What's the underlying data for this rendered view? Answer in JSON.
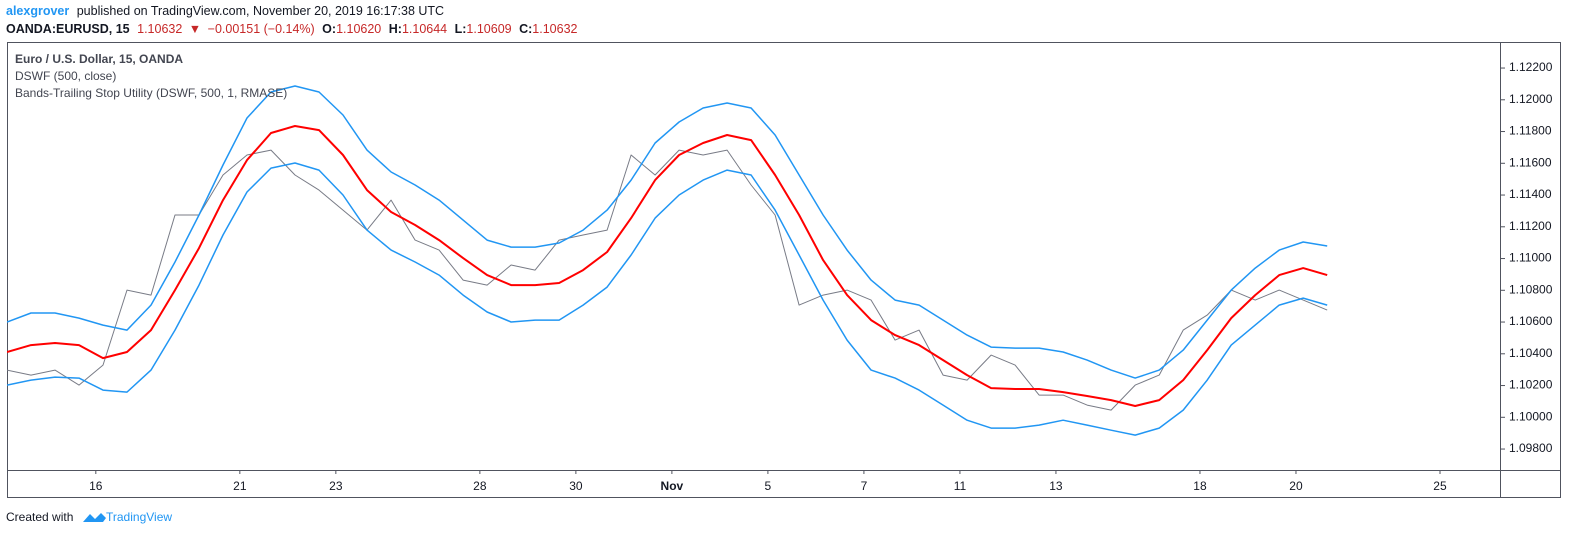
{
  "header": {
    "author": "alexgrover",
    "published": "published on TradingView.com, November 20, 2019 16:17:38 UTC",
    "symbol": "OANDA:EURUSD, 15",
    "last": "1.10632",
    "arrow": "▼",
    "change": "−0.00151 (−0.14%)",
    "ohlc": [
      {
        "label": "O:",
        "value": "1.10620"
      },
      {
        "label": "H:",
        "value": "1.10644"
      },
      {
        "label": "L:",
        "value": "1.10609"
      },
      {
        "label": "C:",
        "value": "1.10632"
      }
    ]
  },
  "legend_lines": [
    "Euro / U.S. Dollar, 15, OANDA",
    "DSWF (500, close)",
    "Bands-Trailing Stop Utility (DSWF, 500, 1, RMASE)"
  ],
  "footer": {
    "created": "Created with",
    "brand": "TradingView"
  },
  "chart_data": {
    "type": "line",
    "x": [
      -1.85,
      -1.35,
      -0.85,
      -0.35,
      0.15,
      0.65,
      1.15,
      1.65,
      2.15,
      2.65,
      3.15,
      3.65,
      4.15,
      4.65,
      5.15,
      5.65,
      6.15,
      6.65,
      7.15,
      7.65,
      8.15,
      8.65,
      9.15,
      9.65,
      10.15,
      10.65,
      11.15,
      11.65,
      12.15,
      12.65,
      13.15,
      13.65,
      14.15,
      14.65,
      15.15,
      15.65,
      16.15,
      16.65,
      17.15,
      17.65,
      18.15,
      18.65,
      19.15,
      19.65,
      20.15,
      20.65,
      21.15,
      21.65,
      22.15,
      22.65,
      23.15,
      23.65,
      24.15,
      24.65,
      25.15,
      25.65
    ],
    "series": [
      {
        "color": "#787b86",
        "width": 1,
        "values": [
          1.10297,
          1.10266,
          1.10297,
          1.10203,
          1.10329,
          1.10801,
          1.1077,
          1.11274,
          1.11274,
          1.11526,
          1.11652,
          1.11683,
          1.11526,
          1.11431,
          1.11305,
          1.11179,
          1.11368,
          1.11116,
          1.11053,
          1.10864,
          1.10833,
          1.10959,
          1.10927,
          1.11116,
          1.11148,
          1.11179,
          1.11652,
          1.11526,
          1.11683,
          1.11652,
          1.11683,
          1.11463,
          1.11274,
          1.10707,
          1.1077,
          1.10801,
          1.10738,
          1.10486,
          1.10549,
          1.10266,
          1.10234,
          1.10392,
          1.10329,
          1.1014,
          1.1014,
          1.10077,
          1.10045,
          1.10203,
          1.10266,
          1.10549,
          1.10644,
          1.10801,
          1.10738,
          1.10801,
          1.10738,
          1.10675
        ]
      },
      {
        "color": "#2196f3",
        "width": 1.5,
        "values": [
          1.106,
          1.10657,
          1.10657,
          1.10625,
          1.10581,
          1.10549,
          1.10707,
          1.10978,
          1.11274,
          1.11589,
          1.11885,
          1.12049,
          1.12087,
          1.12049,
          1.11904,
          1.11683,
          1.11545,
          1.11463,
          1.11368,
          1.11242,
          1.11116,
          1.11072,
          1.11072,
          1.11098,
          1.11179,
          1.11305,
          1.11494,
          1.11728,
          1.1186,
          1.11948,
          1.1198,
          1.11948,
          1.11778,
          1.11526,
          1.11274,
          1.11053,
          1.10864,
          1.10738,
          1.10707,
          1.10612,
          1.10518,
          1.10442,
          1.10436,
          1.10436,
          1.10411,
          1.1036,
          1.10297,
          1.10247,
          1.10297,
          1.10423,
          1.10612,
          1.10801,
          1.1094,
          1.11053,
          1.11104,
          1.11079
        ]
      },
      {
        "color": "#2196f3",
        "width": 1.5,
        "values": [
          1.10203,
          1.10234,
          1.10253,
          1.10247,
          1.10171,
          1.10159,
          1.10297,
          1.10549,
          1.10833,
          1.11148,
          1.11419,
          1.1157,
          1.11602,
          1.11557,
          1.114,
          1.11179,
          1.11053,
          1.10978,
          1.10896,
          1.1077,
          1.10663,
          1.106,
          1.10612,
          1.10612,
          1.10707,
          1.1082,
          1.11022,
          1.11255,
          1.114,
          1.11494,
          1.11557,
          1.11526,
          1.11305,
          1.11022,
          1.10738,
          1.10486,
          1.10297,
          1.10247,
          1.10171,
          1.10077,
          1.09982,
          1.09932,
          1.09932,
          1.09951,
          1.09982,
          1.09951,
          1.09919,
          1.09888,
          1.09932,
          1.10045,
          1.10234,
          1.10455,
          1.10581,
          1.10707,
          1.10751,
          1.10707
        ]
      },
      {
        "color": "#ff0000",
        "width": 2,
        "values": [
          1.10411,
          1.10455,
          1.10468,
          1.10455,
          1.10373,
          1.10411,
          1.10549,
          1.10801,
          1.11066,
          1.11368,
          1.1162,
          1.11791,
          1.11835,
          1.11809,
          1.11652,
          1.11431,
          1.11293,
          1.11211,
          1.11116,
          1.11003,
          1.10896,
          1.10833,
          1.10833,
          1.10846,
          1.10927,
          1.11041,
          1.11255,
          1.11494,
          1.11652,
          1.11728,
          1.11778,
          1.11746,
          1.11526,
          1.11274,
          1.1099,
          1.1077,
          1.10612,
          1.10518,
          1.10455,
          1.1036,
          1.10266,
          1.10184,
          1.10178,
          1.10178,
          1.10159,
          1.10134,
          1.10108,
          1.10071,
          1.10108,
          1.10234,
          1.10423,
          1.10625,
          1.1077,
          1.10896,
          1.1094,
          1.10896
        ]
      }
    ],
    "xlim": [
      -1.85,
      29.25
    ],
    "xticks": [
      {
        "value": 0,
        "label": "16"
      },
      {
        "value": 3,
        "label": "21"
      },
      {
        "value": 5,
        "label": "23"
      },
      {
        "value": 8,
        "label": "28"
      },
      {
        "value": 10,
        "label": "30"
      },
      {
        "value": 12,
        "label": "Nov"
      },
      {
        "value": 14,
        "label": "5"
      },
      {
        "value": 16,
        "label": "7"
      },
      {
        "value": 18,
        "label": "11"
      },
      {
        "value": 20,
        "label": "13"
      },
      {
        "value": 23,
        "label": "18"
      },
      {
        "value": 25,
        "label": "20"
      },
      {
        "value": 28,
        "label": "25"
      }
    ],
    "ylim": [
      1.09668,
      1.12364
    ],
    "yticks": [
      {
        "value": 1.122,
        "label": "1.12200"
      },
      {
        "value": 1.12,
        "label": "1.12000"
      },
      {
        "value": 1.118,
        "label": "1.11800"
      },
      {
        "value": 1.116,
        "label": "1.11600"
      },
      {
        "value": 1.114,
        "label": "1.11400"
      },
      {
        "value": 1.112,
        "label": "1.11200"
      },
      {
        "value": 1.11,
        "label": "1.11000"
      },
      {
        "value": 1.108,
        "label": "1.10800"
      },
      {
        "value": 1.106,
        "label": "1.10600"
      },
      {
        "value": 1.104,
        "label": "1.10400"
      },
      {
        "value": 1.102,
        "label": "1.10200"
      },
      {
        "value": 1.1,
        "label": "1.10000"
      },
      {
        "value": 1.098,
        "label": "1.09800"
      }
    ],
    "grid": false
  }
}
